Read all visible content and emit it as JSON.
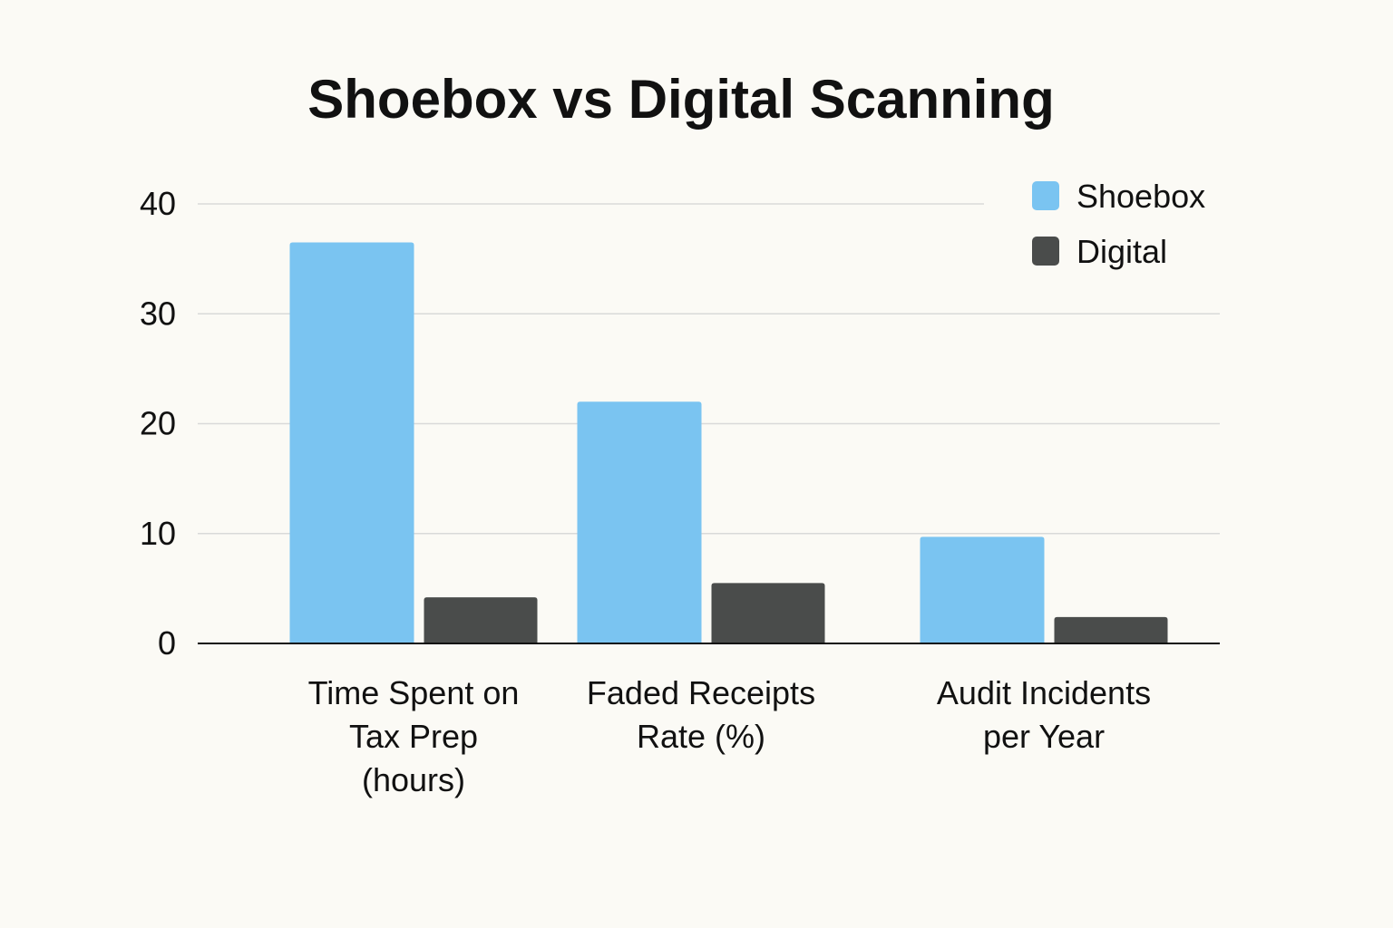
{
  "chart_data": {
    "type": "bar",
    "title": "Shoebox vs Digital Scanning",
    "xlabel": "",
    "ylabel": "",
    "categories": [
      [
        "Time Spent on",
        "Tax Prep",
        "(hours)"
      ],
      [
        "Faded Receipts",
        "Rate (%)"
      ],
      [
        "Audit Incidents",
        "per Year"
      ]
    ],
    "series": [
      {
        "name": "Shoebox",
        "values": [
          36.5,
          22,
          9.7
        ],
        "color": "#7ac4f1"
      },
      {
        "name": "Digital",
        "values": [
          4.2,
          5.5,
          2.4
        ],
        "color": "#4a4c4b"
      }
    ],
    "ylim": [
      0,
      40
    ],
    "yticks": [
      0,
      10,
      20,
      30,
      40
    ],
    "grid": true,
    "legend_position": "top-right"
  }
}
